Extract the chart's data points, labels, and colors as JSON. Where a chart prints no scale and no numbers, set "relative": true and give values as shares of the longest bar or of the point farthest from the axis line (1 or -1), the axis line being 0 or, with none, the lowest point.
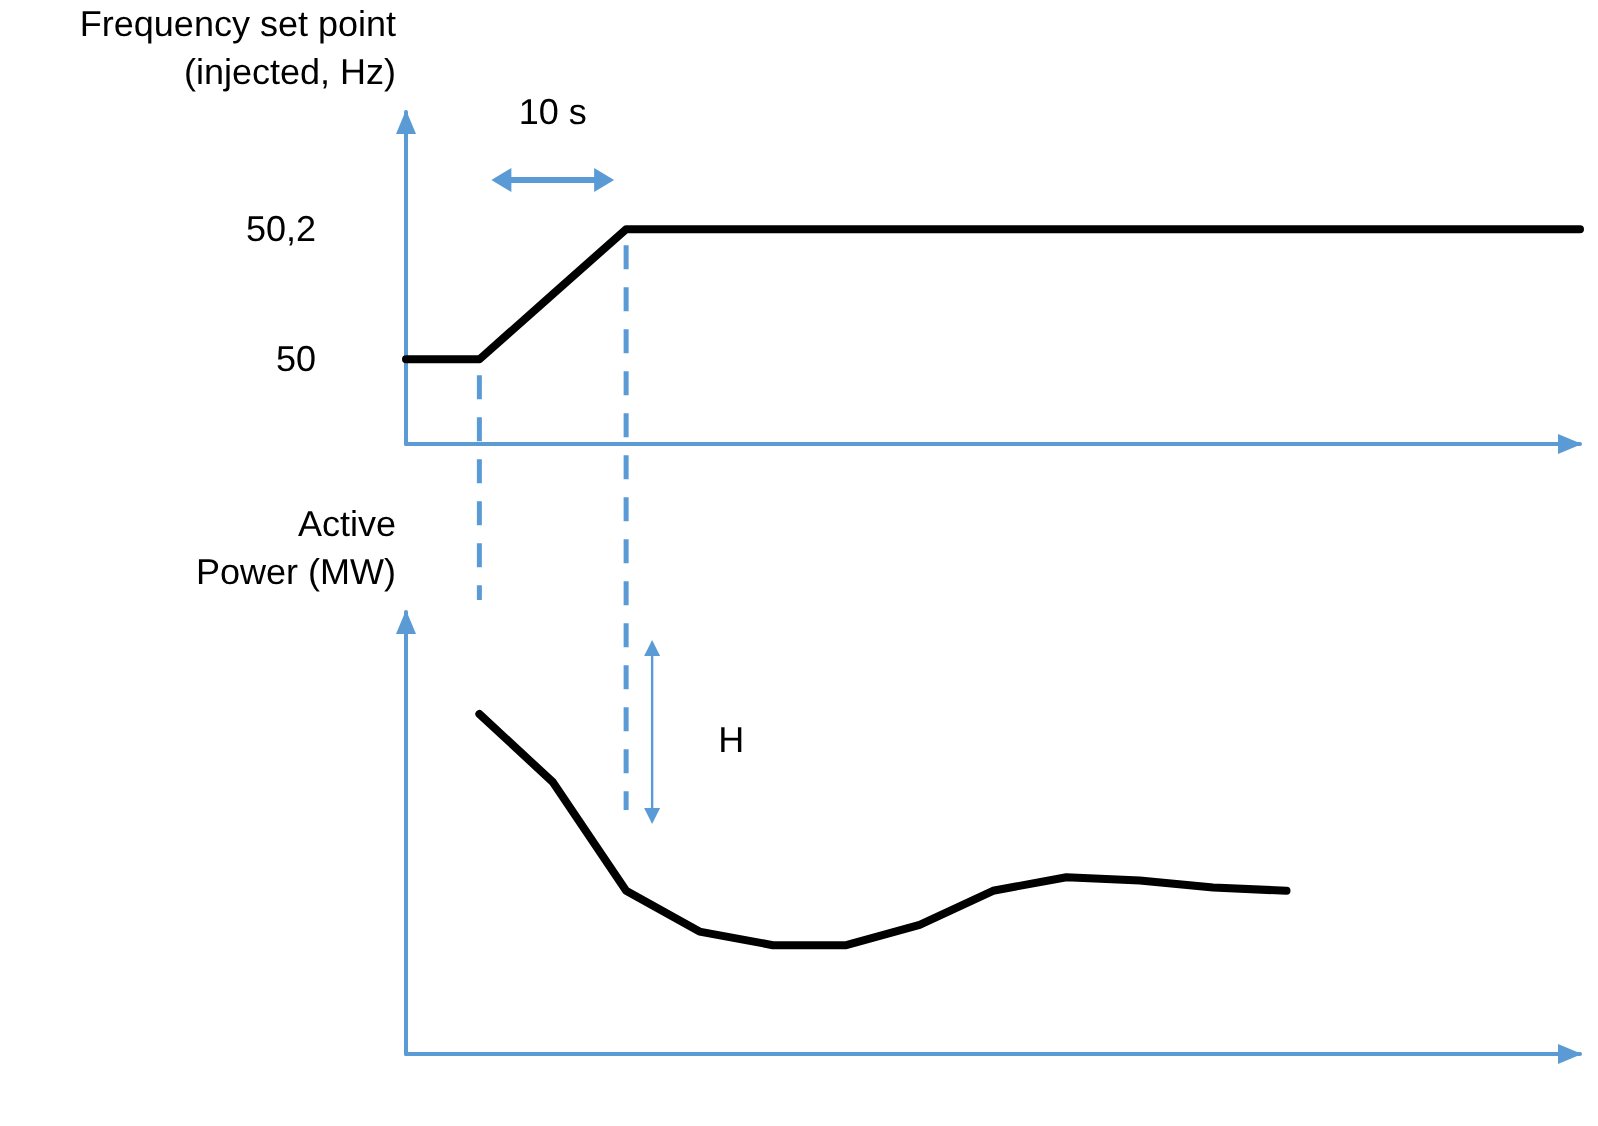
{
  "chart_data": [
    {
      "type": "line",
      "ylabel": "Frequency set point\n(injected, Hz)",
      "categories": [
        null,
        null,
        null,
        null,
        null,
        null,
        null,
        null,
        null,
        null,
        null,
        null,
        null,
        null,
        null,
        null,
        null
      ],
      "series": [
        {
          "color": "#000000",
          "values": [
            50,
            50,
            50.1,
            50.2,
            50.2,
            50.2,
            50.2,
            50.2,
            50.2,
            50.2,
            50.2,
            50.2,
            50.2,
            50.2,
            50.2,
            50.2,
            50.2
          ]
        }
      ],
      "ylim": [
        49.87,
        50.38
      ],
      "yticks": [
        50,
        {
          "value": 50.2,
          "label": "50,2"
        }
      ],
      "grid": false,
      "tick_labels": "y",
      "marker": "none",
      "line_style": "solid",
      "annotations": [
        "10 s"
      ]
    },
    {
      "type": "line",
      "ylabel": "Active\nPower (MW)",
      "relative": true,
      "categories": [
        null,
        null,
        null,
        null,
        null,
        null,
        null,
        null,
        null,
        null,
        null,
        null,
        null,
        null,
        null,
        null,
        null
      ],
      "series": [
        {
          "color": "#000000",
          "values": [
            null,
            1,
            0.8,
            0.48,
            0.36,
            0.32,
            0.32,
            0.38,
            0.48,
            0.52,
            0.51,
            0.49,
            0.48,
            null,
            null,
            null,
            null
          ]
        }
      ],
      "grid": false,
      "tick_labels": false,
      "marker": "none",
      "line_style": "solid",
      "annotations": [
        "H"
      ]
    }
  ]
}
